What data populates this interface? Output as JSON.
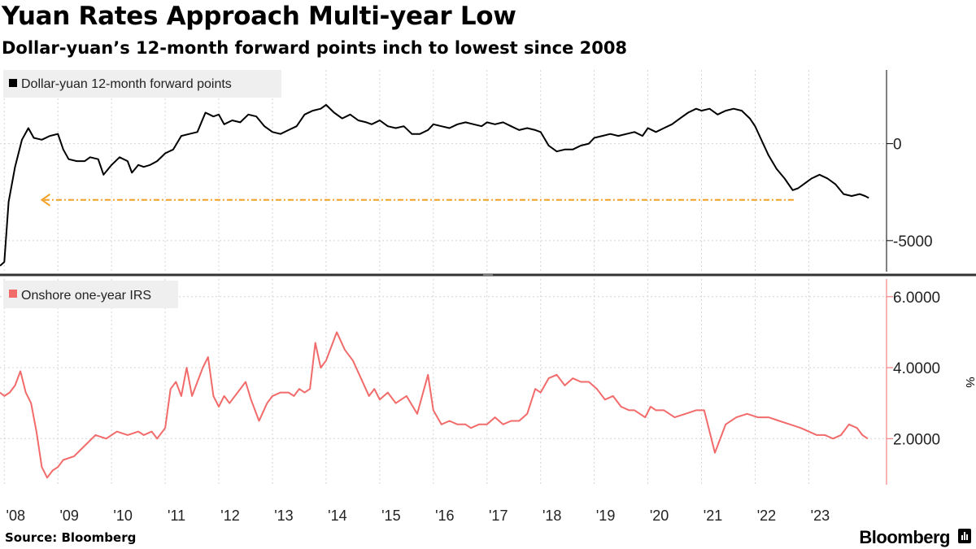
{
  "header": {
    "title": "Yuan Rates Approach Multi-year Low",
    "subtitle": "Dollar-yuan’s 12-month forward points inch to lowest since 2008"
  },
  "footer": {
    "source": "Source: Bloomberg",
    "brand": "Bloomberg"
  },
  "chart_data": [
    {
      "type": "line",
      "title": "Dollar-yuan 12-month forward points",
      "legend": [
        "Dollar-yuan 12-month forward points"
      ],
      "ylim": [
        -6600,
        3800
      ],
      "yticks": [
        0,
        -5000
      ],
      "ytick_labels": [
        "0",
        "-5000"
      ],
      "color": "#000000",
      "annotation": {
        "type": "dashed-arrow",
        "color": "#f2a124",
        "y": -2900,
        "from_x": 2022.72,
        "to_x": 2008.7
      },
      "series": [
        {
          "name": "Dollar-yuan 12-month forward points",
          "x": [
            2007.92,
            2008.0,
            2008.08,
            2008.2,
            2008.33,
            2008.45,
            2008.55,
            2008.7,
            2008.85,
            2009.0,
            2009.1,
            2009.2,
            2009.35,
            2009.5,
            2009.6,
            2009.75,
            2009.85,
            2010.0,
            2010.15,
            2010.3,
            2010.38,
            2010.5,
            2010.6,
            2010.72,
            2010.85,
            2011.0,
            2011.15,
            2011.3,
            2011.45,
            2011.6,
            2011.75,
            2011.9,
            2012.0,
            2012.1,
            2012.25,
            2012.4,
            2012.55,
            2012.7,
            2012.85,
            2013.0,
            2013.15,
            2013.3,
            2013.45,
            2013.6,
            2013.75,
            2013.9,
            2014.0,
            2014.15,
            2014.3,
            2014.45,
            2014.6,
            2014.75,
            2014.85,
            2015.0,
            2015.15,
            2015.3,
            2015.45,
            2015.6,
            2015.75,
            2015.9,
            2016.0,
            2016.15,
            2016.3,
            2016.45,
            2016.6,
            2016.75,
            2016.9,
            2017.0,
            2017.15,
            2017.3,
            2017.45,
            2017.6,
            2017.75,
            2017.9,
            2018.0,
            2018.15,
            2018.3,
            2018.45,
            2018.6,
            2018.75,
            2018.9,
            2019.0,
            2019.15,
            2019.3,
            2019.45,
            2019.6,
            2019.75,
            2019.9,
            2020.0,
            2020.15,
            2020.3,
            2020.45,
            2020.6,
            2020.75,
            2020.9,
            2021.0,
            2021.15,
            2021.3,
            2021.45,
            2021.6,
            2021.75,
            2021.9,
            2022.0,
            2022.1,
            2022.25,
            2022.4,
            2022.55,
            2022.7,
            2022.8,
            2022.95,
            2023.05,
            2023.2,
            2023.35,
            2023.5,
            2023.65,
            2023.8,
            2023.95,
            2024.05,
            2024.12
          ],
          "values": [
            -6300,
            -6100,
            -3000,
            -1200,
            200,
            800,
            300,
            200,
            400,
            500,
            -300,
            -800,
            -900,
            -900,
            -700,
            -800,
            -1600,
            -1100,
            -700,
            -900,
            -1500,
            -1100,
            -1200,
            -1100,
            -900,
            -500,
            -300,
            400,
            500,
            600,
            1600,
            1400,
            1500,
            1000,
            1200,
            1100,
            1500,
            1400,
            900,
            600,
            500,
            700,
            900,
            1500,
            1700,
            1800,
            2000,
            1600,
            1300,
            1500,
            1200,
            1100,
            1000,
            1200,
            900,
            800,
            900,
            500,
            500,
            700,
            1000,
            900,
            800,
            1000,
            1100,
            1000,
            900,
            1100,
            1000,
            1100,
            900,
            700,
            800,
            700,
            600,
            -100,
            -400,
            -300,
            -300,
            -100,
            0,
            300,
            400,
            500,
            400,
            500,
            600,
            400,
            800,
            600,
            800,
            1000,
            1300,
            1600,
            1800,
            1700,
            1800,
            1500,
            1700,
            1800,
            1700,
            1300,
            900,
            300,
            -600,
            -1300,
            -1800,
            -2400,
            -2300,
            -2000,
            -1800,
            -1600,
            -1800,
            -2100,
            -2600,
            -2700,
            -2600,
            -2700,
            -2800
          ]
        }
      ]
    },
    {
      "type": "line",
      "title": "Onshore one-year IRS",
      "legend": [
        "Onshore one-year IRS"
      ],
      "ylabel": "%",
      "ylim": [
        0.7,
        6.5
      ],
      "yticks": [
        6.0,
        4.0,
        2.0
      ],
      "ytick_labels": [
        "6.0000",
        "4.0000",
        "2.0000"
      ],
      "color": "#f26b6b",
      "series": [
        {
          "name": "Onshore one-year IRS",
          "x": [
            2007.92,
            2008.0,
            2008.1,
            2008.2,
            2008.3,
            2008.4,
            2008.5,
            2008.6,
            2008.7,
            2008.8,
            2008.9,
            2009.0,
            2009.1,
            2009.3,
            2009.5,
            2009.7,
            2009.9,
            2010.1,
            2010.3,
            2010.5,
            2010.6,
            2010.75,
            2010.85,
            2011.0,
            2011.1,
            2011.2,
            2011.3,
            2011.4,
            2011.5,
            2011.6,
            2011.7,
            2011.8,
            2011.9,
            2012.0,
            2012.1,
            2012.2,
            2012.35,
            2012.5,
            2012.6,
            2012.75,
            2012.9,
            2013.0,
            2013.15,
            2013.3,
            2013.4,
            2013.5,
            2013.6,
            2013.7,
            2013.8,
            2013.9,
            2014.0,
            2014.1,
            2014.2,
            2014.35,
            2014.5,
            2014.65,
            2014.8,
            2014.9,
            2015.0,
            2015.15,
            2015.3,
            2015.5,
            2015.7,
            2015.9,
            2016.0,
            2016.15,
            2016.3,
            2016.45,
            2016.6,
            2016.7,
            2016.85,
            2017.0,
            2017.15,
            2017.3,
            2017.45,
            2017.6,
            2017.75,
            2017.9,
            2018.0,
            2018.15,
            2018.3,
            2018.45,
            2018.6,
            2018.75,
            2018.9,
            2019.05,
            2019.2,
            2019.35,
            2019.5,
            2019.65,
            2019.75,
            2019.85,
            2019.95,
            2020.05,
            2020.15,
            2020.3,
            2020.5,
            2020.7,
            2020.9,
            2021.05,
            2021.25,
            2021.45,
            2021.65,
            2021.85,
            2022.05,
            2022.25,
            2022.45,
            2022.65,
            2022.85,
            2023.0,
            2023.15,
            2023.3,
            2023.45,
            2023.6,
            2023.75,
            2023.9,
            2024.0,
            2024.1
          ],
          "values": [
            3.3,
            3.2,
            3.3,
            3.5,
            3.9,
            3.3,
            3.0,
            2.2,
            1.2,
            0.9,
            1.1,
            1.2,
            1.4,
            1.5,
            1.8,
            2.1,
            2.0,
            2.2,
            2.1,
            2.2,
            2.1,
            2.2,
            2.0,
            2.3,
            3.4,
            3.6,
            3.2,
            4.0,
            3.2,
            3.6,
            4.0,
            4.3,
            3.2,
            2.9,
            3.2,
            3.0,
            3.3,
            3.6,
            3.1,
            2.5,
            3.0,
            3.2,
            3.3,
            3.3,
            3.2,
            3.4,
            3.3,
            3.4,
            4.7,
            4.0,
            4.2,
            4.6,
            5.0,
            4.5,
            4.2,
            3.7,
            3.2,
            3.4,
            3.1,
            3.3,
            3.0,
            3.2,
            2.7,
            3.8,
            2.8,
            2.4,
            2.5,
            2.4,
            2.4,
            2.3,
            2.4,
            2.4,
            2.6,
            2.4,
            2.5,
            2.5,
            2.7,
            3.4,
            3.3,
            3.7,
            3.8,
            3.5,
            3.7,
            3.6,
            3.6,
            3.4,
            3.1,
            3.2,
            2.9,
            2.8,
            2.8,
            2.7,
            2.6,
            2.9,
            2.8,
            2.8,
            2.6,
            2.7,
            2.8,
            2.8,
            1.6,
            2.4,
            2.6,
            2.7,
            2.6,
            2.6,
            2.5,
            2.4,
            2.3,
            2.2,
            2.1,
            2.1,
            2.0,
            2.1,
            2.4,
            2.3,
            2.1,
            2.0
          ],
          "note": "series values are approximate readings"
        }
      ]
    }
  ],
  "x_axis": {
    "range": [
      2007.92,
      2024.45
    ],
    "ticks": [
      2008,
      2009,
      2010,
      2011,
      2012,
      2013,
      2014,
      2015,
      2016,
      2017,
      2018,
      2019,
      2020,
      2021,
      2022,
      2023
    ],
    "tick_labels": [
      "'08",
      "'09",
      "'10",
      "'11",
      "'12",
      "'13",
      "'14",
      "'15",
      "'16",
      "'17",
      "'18",
      "'19",
      "'20",
      "'21",
      "'22",
      "'23"
    ]
  },
  "colors": {
    "grid": "#d4d4d4",
    "axis": "#000000",
    "legend_bg": "#efefef",
    "panel_divider": "#333333",
    "arrow": "#f2a124"
  }
}
